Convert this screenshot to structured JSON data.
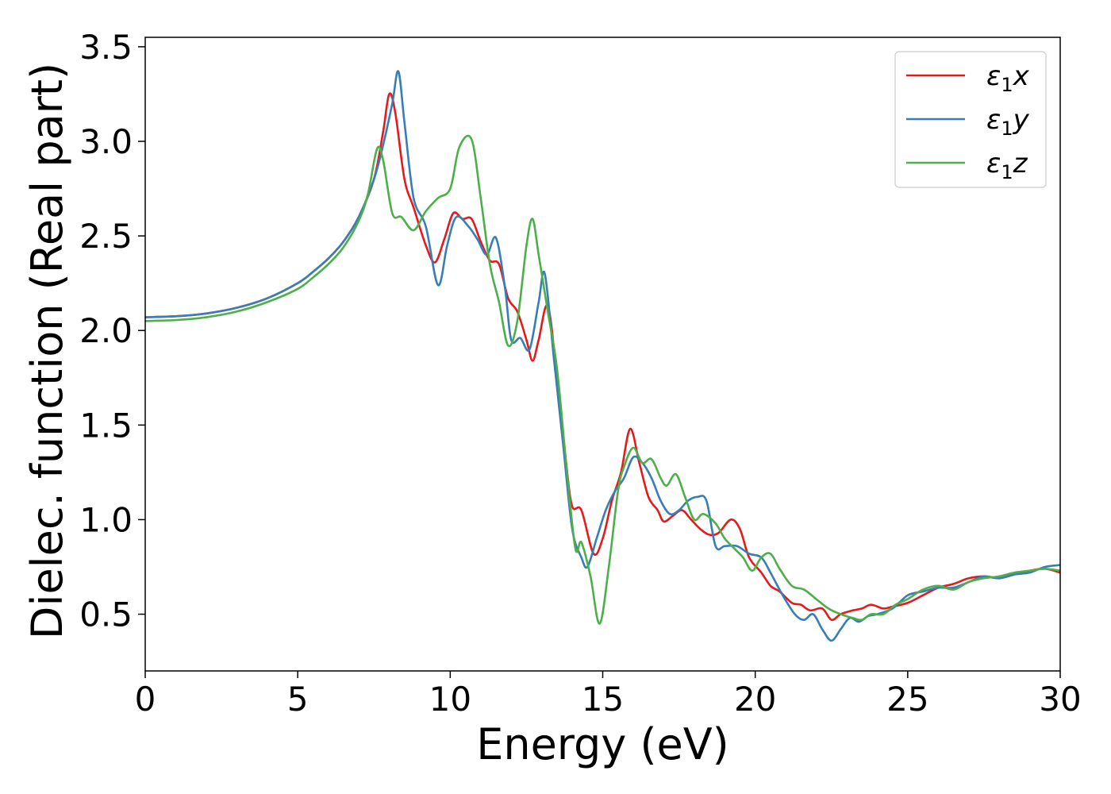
{
  "chart_data": {
    "type": "line",
    "title": "",
    "xlabel": "Energy (eV)",
    "ylabel": "Dielec. function (Real part)",
    "xlim": [
      0,
      30
    ],
    "ylim": [
      0.2,
      3.55
    ],
    "xticks": [
      0,
      5,
      10,
      15,
      20,
      25,
      30
    ],
    "yticks": [
      0.5,
      1.0,
      1.5,
      2.0,
      2.5,
      3.0,
      3.5
    ],
    "xtick_labels": [
      "0",
      "5",
      "10",
      "15",
      "20",
      "25",
      "30"
    ],
    "ytick_labels": [
      "0.5",
      "1.0",
      "1.5",
      "2.0",
      "2.5",
      "3.0",
      "3.5"
    ],
    "grid": false,
    "legend_position": "top-right",
    "series": [
      {
        "name": "ε1x",
        "label_base": "ε",
        "label_sub": "1",
        "label_suffix": "x",
        "color": "#e41a1c",
        "points": [
          [
            0,
            2.07
          ],
          [
            1,
            2.075
          ],
          [
            2,
            2.09
          ],
          [
            3,
            2.12
          ],
          [
            4,
            2.17
          ],
          [
            5,
            2.25
          ],
          [
            5.5,
            2.31
          ],
          [
            6,
            2.38
          ],
          [
            6.5,
            2.47
          ],
          [
            7,
            2.6
          ],
          [
            7.5,
            2.8
          ],
          [
            7.8,
            3.05
          ],
          [
            8.0,
            3.25
          ],
          [
            8.2,
            3.15
          ],
          [
            8.5,
            2.8
          ],
          [
            8.8,
            2.65
          ],
          [
            9.2,
            2.45
          ],
          [
            9.5,
            2.36
          ],
          [
            9.8,
            2.48
          ],
          [
            10.1,
            2.62
          ],
          [
            10.4,
            2.59
          ],
          [
            10.7,
            2.59
          ],
          [
            11.0,
            2.47
          ],
          [
            11.3,
            2.37
          ],
          [
            11.6,
            2.35
          ],
          [
            11.9,
            2.17
          ],
          [
            12.2,
            2.1
          ],
          [
            12.5,
            1.95
          ],
          [
            12.7,
            1.84
          ],
          [
            12.9,
            1.95
          ],
          [
            13.2,
            2.13
          ],
          [
            13.5,
            1.75
          ],
          [
            13.8,
            1.3
          ],
          [
            14.0,
            1.07
          ],
          [
            14.3,
            1.05
          ],
          [
            14.7,
            0.82
          ],
          [
            15.0,
            0.9
          ],
          [
            15.3,
            1.1
          ],
          [
            15.6,
            1.25
          ],
          [
            15.9,
            1.48
          ],
          [
            16.2,
            1.3
          ],
          [
            16.5,
            1.12
          ],
          [
            16.8,
            1.05
          ],
          [
            17.0,
            0.99
          ],
          [
            17.3,
            1.02
          ],
          [
            17.6,
            1.05
          ],
          [
            17.9,
            1.0
          ],
          [
            18.2,
            0.95
          ],
          [
            18.5,
            0.92
          ],
          [
            18.8,
            0.93
          ],
          [
            19.2,
            1.0
          ],
          [
            19.5,
            0.95
          ],
          [
            19.8,
            0.8
          ],
          [
            20.2,
            0.72
          ],
          [
            20.5,
            0.65
          ],
          [
            20.8,
            0.62
          ],
          [
            21.2,
            0.56
          ],
          [
            21.5,
            0.55
          ],
          [
            21.8,
            0.52
          ],
          [
            22.2,
            0.53
          ],
          [
            22.5,
            0.47
          ],
          [
            22.8,
            0.5
          ],
          [
            23.2,
            0.52
          ],
          [
            23.5,
            0.53
          ],
          [
            23.8,
            0.55
          ],
          [
            24.2,
            0.53
          ],
          [
            24.5,
            0.54
          ],
          [
            25.0,
            0.56
          ],
          [
            25.5,
            0.6
          ],
          [
            26.0,
            0.64
          ],
          [
            26.5,
            0.66
          ],
          [
            27.0,
            0.69
          ],
          [
            27.5,
            0.7
          ],
          [
            28.0,
            0.69
          ],
          [
            28.5,
            0.71
          ],
          [
            29.0,
            0.73
          ],
          [
            29.5,
            0.74
          ],
          [
            30.0,
            0.72
          ]
        ]
      },
      {
        "name": "ε1y",
        "label_base": "ε",
        "label_sub": "1",
        "label_suffix": "y",
        "color": "#377eb8",
        "points": [
          [
            0,
            2.07
          ],
          [
            1,
            2.075
          ],
          [
            2,
            2.09
          ],
          [
            3,
            2.12
          ],
          [
            4,
            2.17
          ],
          [
            5,
            2.25
          ],
          [
            5.5,
            2.31
          ],
          [
            6,
            2.38
          ],
          [
            6.5,
            2.47
          ],
          [
            7,
            2.6
          ],
          [
            7.5,
            2.8
          ],
          [
            7.8,
            2.98
          ],
          [
            8.1,
            3.2
          ],
          [
            8.3,
            3.37
          ],
          [
            8.5,
            3.1
          ],
          [
            8.8,
            2.7
          ],
          [
            9.2,
            2.55
          ],
          [
            9.6,
            2.24
          ],
          [
            9.9,
            2.45
          ],
          [
            10.2,
            2.6
          ],
          [
            10.6,
            2.55
          ],
          [
            10.9,
            2.48
          ],
          [
            11.2,
            2.4
          ],
          [
            11.5,
            2.49
          ],
          [
            11.8,
            2.22
          ],
          [
            12.0,
            1.95
          ],
          [
            12.3,
            1.96
          ],
          [
            12.6,
            1.9
          ],
          [
            12.9,
            2.15
          ],
          [
            13.1,
            2.3
          ],
          [
            13.4,
            1.85
          ],
          [
            13.7,
            1.4
          ],
          [
            14.0,
            0.95
          ],
          [
            14.3,
            0.8
          ],
          [
            14.5,
            0.75
          ],
          [
            14.8,
            0.9
          ],
          [
            15.1,
            1.05
          ],
          [
            15.4,
            1.15
          ],
          [
            15.7,
            1.22
          ],
          [
            16.0,
            1.33
          ],
          [
            16.3,
            1.3
          ],
          [
            16.6,
            1.22
          ],
          [
            16.9,
            1.1
          ],
          [
            17.2,
            1.03
          ],
          [
            17.5,
            1.05
          ],
          [
            17.8,
            1.1
          ],
          [
            18.1,
            1.12
          ],
          [
            18.4,
            1.1
          ],
          [
            18.7,
            0.86
          ],
          [
            19.0,
            0.86
          ],
          [
            19.4,
            0.86
          ],
          [
            19.8,
            0.82
          ],
          [
            20.2,
            0.8
          ],
          [
            20.5,
            0.72
          ],
          [
            20.9,
            0.6
          ],
          [
            21.3,
            0.5
          ],
          [
            21.6,
            0.47
          ],
          [
            21.9,
            0.5
          ],
          [
            22.2,
            0.42
          ],
          [
            22.5,
            0.36
          ],
          [
            22.8,
            0.42
          ],
          [
            23.1,
            0.48
          ],
          [
            23.4,
            0.46
          ],
          [
            23.7,
            0.49
          ],
          [
            24.0,
            0.5
          ],
          [
            24.5,
            0.53
          ],
          [
            25.0,
            0.6
          ],
          [
            25.5,
            0.62
          ],
          [
            26.0,
            0.64
          ],
          [
            26.5,
            0.64
          ],
          [
            27.0,
            0.67
          ],
          [
            27.5,
            0.7
          ],
          [
            28.0,
            0.69
          ],
          [
            28.5,
            0.71
          ],
          [
            29.0,
            0.72
          ],
          [
            29.5,
            0.75
          ],
          [
            30.0,
            0.76
          ]
        ]
      },
      {
        "name": "ε1z",
        "label_base": "ε",
        "label_sub": "1",
        "label_suffix": "z",
        "color": "#4daf4a",
        "points": [
          [
            0,
            2.05
          ],
          [
            1,
            2.055
          ],
          [
            2,
            2.07
          ],
          [
            3,
            2.1
          ],
          [
            4,
            2.15
          ],
          [
            5,
            2.22
          ],
          [
            5.5,
            2.28
          ],
          [
            6,
            2.35
          ],
          [
            6.5,
            2.44
          ],
          [
            7,
            2.58
          ],
          [
            7.3,
            2.72
          ],
          [
            7.6,
            2.96
          ],
          [
            7.8,
            2.9
          ],
          [
            8.1,
            2.62
          ],
          [
            8.4,
            2.6
          ],
          [
            8.8,
            2.53
          ],
          [
            9.2,
            2.63
          ],
          [
            9.6,
            2.7
          ],
          [
            10.0,
            2.75
          ],
          [
            10.3,
            2.97
          ],
          [
            10.7,
            3.01
          ],
          [
            11.0,
            2.7
          ],
          [
            11.3,
            2.35
          ],
          [
            11.6,
            2.15
          ],
          [
            11.9,
            1.92
          ],
          [
            12.2,
            2.05
          ],
          [
            12.5,
            2.45
          ],
          [
            12.7,
            2.59
          ],
          [
            12.9,
            2.4
          ],
          [
            13.2,
            2.1
          ],
          [
            13.5,
            1.8
          ],
          [
            13.8,
            1.3
          ],
          [
            14.1,
            0.85
          ],
          [
            14.3,
            0.88
          ],
          [
            14.6,
            0.7
          ],
          [
            14.9,
            0.45
          ],
          [
            15.2,
            0.75
          ],
          [
            15.5,
            1.15
          ],
          [
            15.7,
            1.28
          ],
          [
            16.0,
            1.38
          ],
          [
            16.3,
            1.3
          ],
          [
            16.6,
            1.32
          ],
          [
            16.9,
            1.22
          ],
          [
            17.1,
            1.18
          ],
          [
            17.4,
            1.24
          ],
          [
            17.7,
            1.12
          ],
          [
            18.0,
            1.0
          ],
          [
            18.3,
            1.03
          ],
          [
            18.7,
            0.98
          ],
          [
            19.0,
            0.9
          ],
          [
            19.3,
            0.85
          ],
          [
            19.6,
            0.8
          ],
          [
            19.9,
            0.73
          ],
          [
            20.2,
            0.8
          ],
          [
            20.5,
            0.82
          ],
          [
            20.8,
            0.74
          ],
          [
            21.2,
            0.65
          ],
          [
            21.6,
            0.63
          ],
          [
            22.0,
            0.58
          ],
          [
            22.4,
            0.53
          ],
          [
            22.8,
            0.5
          ],
          [
            23.2,
            0.48
          ],
          [
            23.5,
            0.47
          ],
          [
            23.8,
            0.5
          ],
          [
            24.2,
            0.5
          ],
          [
            24.6,
            0.55
          ],
          [
            25.0,
            0.58
          ],
          [
            25.5,
            0.63
          ],
          [
            26.0,
            0.65
          ],
          [
            26.5,
            0.63
          ],
          [
            27.0,
            0.67
          ],
          [
            27.5,
            0.69
          ],
          [
            28.0,
            0.7
          ],
          [
            28.5,
            0.72
          ],
          [
            29.0,
            0.73
          ],
          [
            29.5,
            0.74
          ],
          [
            30.0,
            0.73
          ]
        ]
      }
    ]
  }
}
